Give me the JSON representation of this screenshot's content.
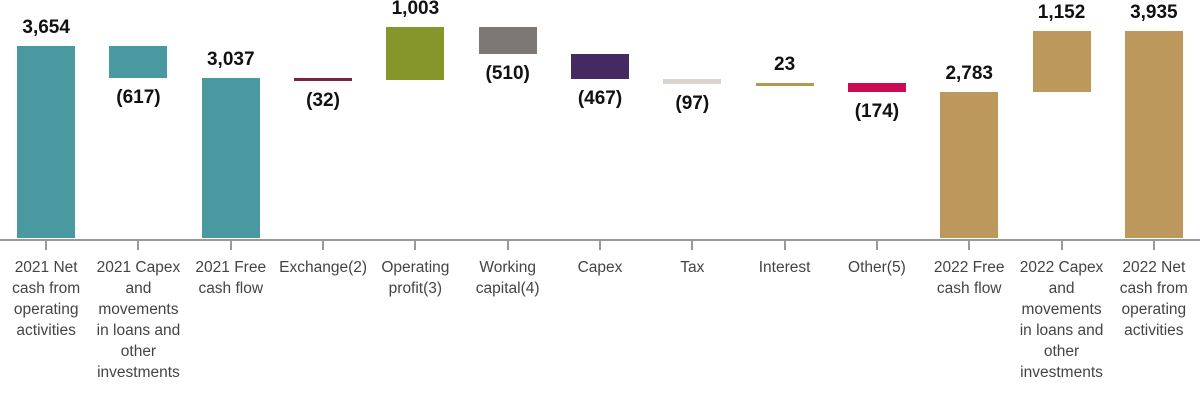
{
  "chart_data": {
    "type": "bar",
    "subtype": "waterfall",
    "title": "",
    "xlabel": "",
    "ylabel": "",
    "ylim": [
      0,
      4100
    ],
    "grid": false,
    "legend": null,
    "axis_color": "#999999",
    "value_label_color": "#111111",
    "category_label_color": "#444444",
    "bars": [
      {
        "label": "2021 Net cash from operating activities",
        "value": 3654,
        "start": 0,
        "end": 3654,
        "value_label": "3,654",
        "label_position": "above",
        "color": "#4a98a0"
      },
      {
        "label": "2021 Capex and movements in loans and other investments",
        "value": -617,
        "start": 3654,
        "end": 3037,
        "value_label": "(617)",
        "label_position": "below",
        "color": "#4a98a0"
      },
      {
        "label": "2021 Free cash flow",
        "value": 3037,
        "start": 0,
        "end": 3037,
        "value_label": "3,037",
        "label_position": "above",
        "color": "#4a98a0"
      },
      {
        "label": "Exchange(2)",
        "value": -32,
        "start": 3037,
        "end": 3005,
        "value_label": "(32)",
        "label_position": "below",
        "color": "#7a2248"
      },
      {
        "label": "Operating profit(3)",
        "value": 1003,
        "start": 3005,
        "end": 4008,
        "value_label": "1,003",
        "label_position": "above",
        "color": "#87962a"
      },
      {
        "label": "Working capital(4)",
        "value": -510,
        "start": 4008,
        "end": 3498,
        "value_label": "(510)",
        "label_position": "below",
        "color": "#7d7873"
      },
      {
        "label": "Capex",
        "value": -467,
        "start": 3498,
        "end": 3031,
        "value_label": "(467)",
        "label_position": "below",
        "color": "#452a61"
      },
      {
        "label": "Tax",
        "value": -97,
        "start": 3031,
        "end": 2934,
        "value_label": "(97)",
        "label_position": "below",
        "color": "#d8d3cc"
      },
      {
        "label": "Interest",
        "value": 23,
        "start": 2934,
        "end": 2957,
        "value_label": "23",
        "label_position": "above",
        "color": "#b5974e"
      },
      {
        "label": "Other(5)",
        "value": -174,
        "start": 2957,
        "end": 2783,
        "value_label": "(174)",
        "label_position": "below",
        "color": "#cb0a54"
      },
      {
        "label": "2022 Free cash flow",
        "value": 2783,
        "start": 0,
        "end": 2783,
        "value_label": "2,783",
        "label_position": "above",
        "color": "#bd985c"
      },
      {
        "label": "2022 Capex and movements in loans and other investments",
        "value": 1152,
        "start": 2783,
        "end": 3935,
        "value_label": "1,152",
        "label_position": "above",
        "color": "#bd985c"
      },
      {
        "label": "2022 Net cash from operating activities",
        "value": 3935,
        "start": 0,
        "end": 3935,
        "value_label": "3,935",
        "label_position": "above",
        "color": "#bd985c"
      }
    ]
  }
}
